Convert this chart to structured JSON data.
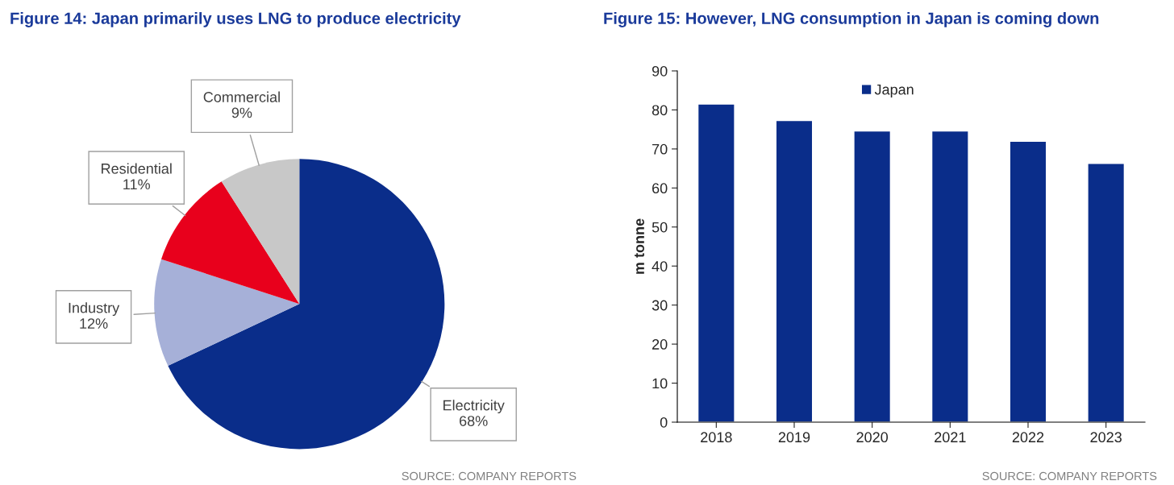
{
  "chart_data": [
    {
      "type": "pie",
      "title": "Figure 14: Japan primarily uses LNG to produce electricity",
      "categories": [
        "Electricity",
        "Industry",
        "Residential",
        "Commercial"
      ],
      "values": [
        68,
        12,
        11,
        9
      ],
      "value_labels": [
        "68%",
        "12%",
        "11%",
        "9%"
      ],
      "colors": [
        "#0a2d8a",
        "#a6b0d8",
        "#e8001c",
        "#c8c8c8"
      ],
      "legend": false,
      "annotations": [
        "SOURCE: COMPANY REPORTS"
      ]
    },
    {
      "type": "bar",
      "title": "Figure 15: However, LNG consumption in Japan is coming down",
      "categories": [
        "2018",
        "2019",
        "2020",
        "2021",
        "2022",
        "2023"
      ],
      "series": [
        {
          "name": "Japan",
          "color": "#0a2d8a",
          "values": [
            81.5,
            77.3,
            74.6,
            74.6,
            72.0,
            66.3
          ]
        }
      ],
      "ylabel": "m tonne",
      "ylim": [
        0,
        90
      ],
      "yticks": [
        0,
        10,
        20,
        30,
        40,
        50,
        60,
        70,
        80,
        90
      ],
      "grid": false,
      "legend": "top",
      "annotations": [
        "SOURCE: COMPANY REPORTS"
      ]
    }
  ]
}
